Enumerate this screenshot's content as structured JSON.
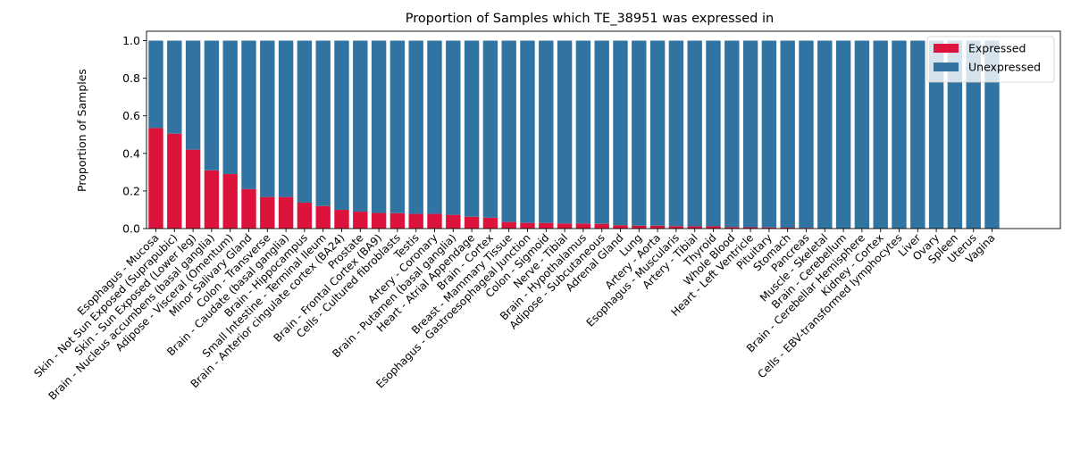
{
  "chart_data": {
    "type": "bar",
    "stacked": true,
    "title": "Proportion of Samples which TE_38951 was expressed in",
    "xlabel": "",
    "ylabel": "Proportion of Samples",
    "ylim": [
      0,
      1.05
    ],
    "yticks": [
      "0.0",
      "0.2",
      "0.4",
      "0.6",
      "0.8",
      "1.0"
    ],
    "legend_position": "top-right",
    "grid": false,
    "categories": [
      "Esophagus - Mucosa",
      "Skin - Not Sun Exposed (Suprapubic)",
      "Skin - Sun Exposed (Lower leg)",
      "Brain - Nucleus accumbens (basal ganglia)",
      "Adipose - Visceral (Omentum)",
      "Minor Salivary Gland",
      "Colon - Transverse",
      "Brain - Caudate (basal ganglia)",
      "Brain - Hippocampus",
      "Small Intestine - Terminal Ileum",
      "Brain - Anterior cingulate cortex (BA24)",
      "Prostate",
      "Brain - Frontal Cortex (BA9)",
      "Cells - Cultured fibroblasts",
      "Testis",
      "Artery - Coronary",
      "Brain - Putamen (basal ganglia)",
      "Heart - Atrial Appendage",
      "Brain - Cortex",
      "Breast - Mammary Tissue",
      "Esophagus - Gastroesophageal Junction",
      "Colon - Sigmoid",
      "Nerve - Tibial",
      "Brain - Hypothalamus",
      "Adipose - Subcutaneous",
      "Adrenal Gland",
      "Lung",
      "Artery - Aorta",
      "Esophagus - Muscularis",
      "Artery - Tibial",
      "Thyroid",
      "Whole Blood",
      "Heart - Left Ventricle",
      "Pituitary",
      "Stomach",
      "Pancreas",
      "Muscle - Skeletal",
      "Brain - Cerebellum",
      "Brain - Cerebellar Hemisphere",
      "Kidney - Cortex",
      "Cells - EBV-transformed lymphocytes",
      "Liver",
      "Ovary",
      "Spleen",
      "Uterus",
      "Vagina"
    ],
    "series": [
      {
        "name": "Expressed",
        "color": "#dc143c",
        "values": [
          0.535,
          0.505,
          0.42,
          0.31,
          0.29,
          0.21,
          0.168,
          0.168,
          0.138,
          0.12,
          0.1,
          0.09,
          0.083,
          0.082,
          0.078,
          0.078,
          0.073,
          0.063,
          0.058,
          0.035,
          0.03,
          0.03,
          0.027,
          0.027,
          0.025,
          0.018,
          0.015,
          0.015,
          0.013,
          0.012,
          0.012,
          0.008,
          0.007,
          0.006,
          0.005,
          0.004,
          0.0,
          0.0,
          0.0,
          0.0,
          0.0,
          0.0,
          0.0,
          0.0,
          0.0,
          0.0
        ]
      },
      {
        "name": "Unexpressed",
        "color": "#3274a1",
        "values": [
          0.465,
          0.495,
          0.58,
          0.69,
          0.71,
          0.79,
          0.832,
          0.832,
          0.862,
          0.88,
          0.9,
          0.91,
          0.917,
          0.918,
          0.922,
          0.922,
          0.927,
          0.937,
          0.942,
          0.965,
          0.97,
          0.97,
          0.973,
          0.973,
          0.975,
          0.982,
          0.985,
          0.985,
          0.987,
          0.988,
          0.988,
          0.992,
          0.993,
          0.994,
          0.995,
          0.996,
          1.0,
          1.0,
          1.0,
          1.0,
          1.0,
          1.0,
          1.0,
          1.0,
          1.0,
          1.0
        ]
      }
    ]
  }
}
